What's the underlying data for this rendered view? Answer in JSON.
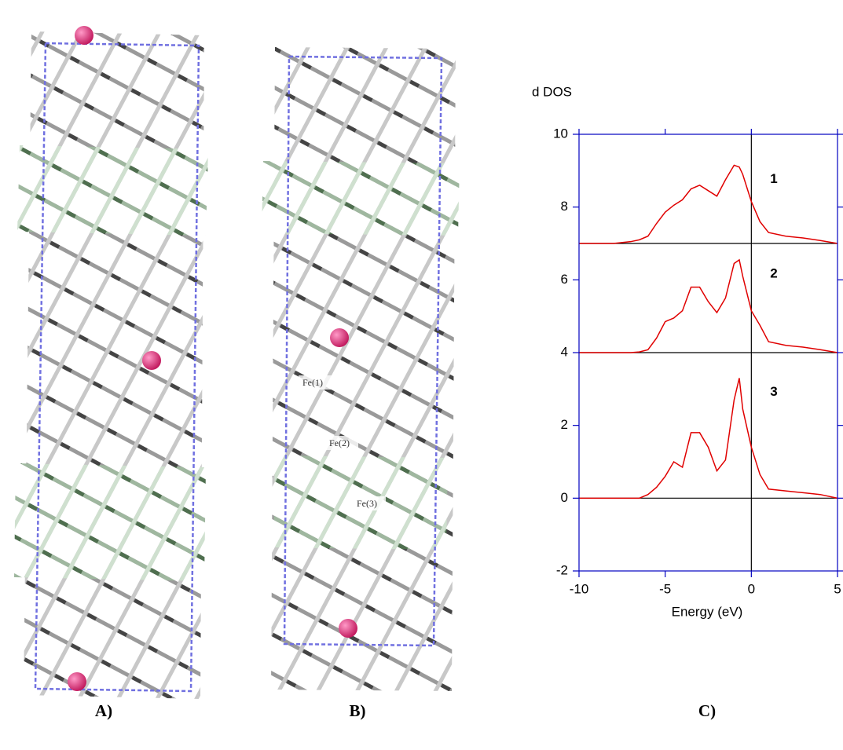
{
  "panels": {
    "labels": [
      "A)",
      "B)",
      "C)"
    ],
    "atom_labels": [
      "Fe(1)",
      "Fe(2)",
      "Fe(3)"
    ]
  },
  "chart_data": {
    "type": "line",
    "y_label": "d DOS",
    "x_label": "Energy (eV)",
    "x": [
      -10,
      -9,
      -8,
      -7,
      -6.5,
      -6,
      -5.5,
      -5,
      -4.5,
      -4,
      -3.5,
      -3,
      -2.5,
      -2,
      -1.5,
      -1,
      -0.7,
      -0.5,
      0,
      0.5,
      1,
      2,
      3,
      4,
      5
    ],
    "series": [
      {
        "name": "1",
        "color": "#e00000",
        "values": [
          7,
          7,
          7,
          7.05,
          7.1,
          7.2,
          7.55,
          7.86,
          8.05,
          8.2,
          8.5,
          8.6,
          8.45,
          8.3,
          8.75,
          9.15,
          9.1,
          8.9,
          8.15,
          7.6,
          7.3,
          7.2,
          7.15,
          7.08,
          7.0
        ]
      },
      {
        "name": "2",
        "color": "#e00000",
        "values": [
          4,
          4,
          4,
          4,
          4.02,
          4.08,
          4.4,
          4.85,
          4.95,
          5.15,
          5.8,
          5.8,
          5.4,
          5.1,
          5.5,
          6.45,
          6.55,
          6.1,
          5.15,
          4.75,
          4.3,
          4.2,
          4.15,
          4.08,
          4.0
        ]
      },
      {
        "name": "3",
        "color": "#e00000",
        "values": [
          0,
          0,
          0,
          0,
          0,
          0.1,
          0.3,
          0.6,
          1.0,
          0.85,
          1.8,
          1.8,
          1.4,
          0.75,
          1.05,
          2.7,
          3.3,
          2.45,
          1.4,
          0.65,
          0.25,
          0.2,
          0.15,
          0.1,
          0.0
        ]
      }
    ],
    "baselines": [
      7,
      4,
      0
    ],
    "zero_line_x": 0,
    "xlim": [
      -10,
      5
    ],
    "xticks": [
      -10,
      -5,
      0,
      5
    ],
    "ylim": [
      -2,
      10
    ],
    "yticks": [
      -2,
      0,
      2,
      4,
      6,
      8,
      10
    ],
    "axis_color": "#0000c0"
  }
}
